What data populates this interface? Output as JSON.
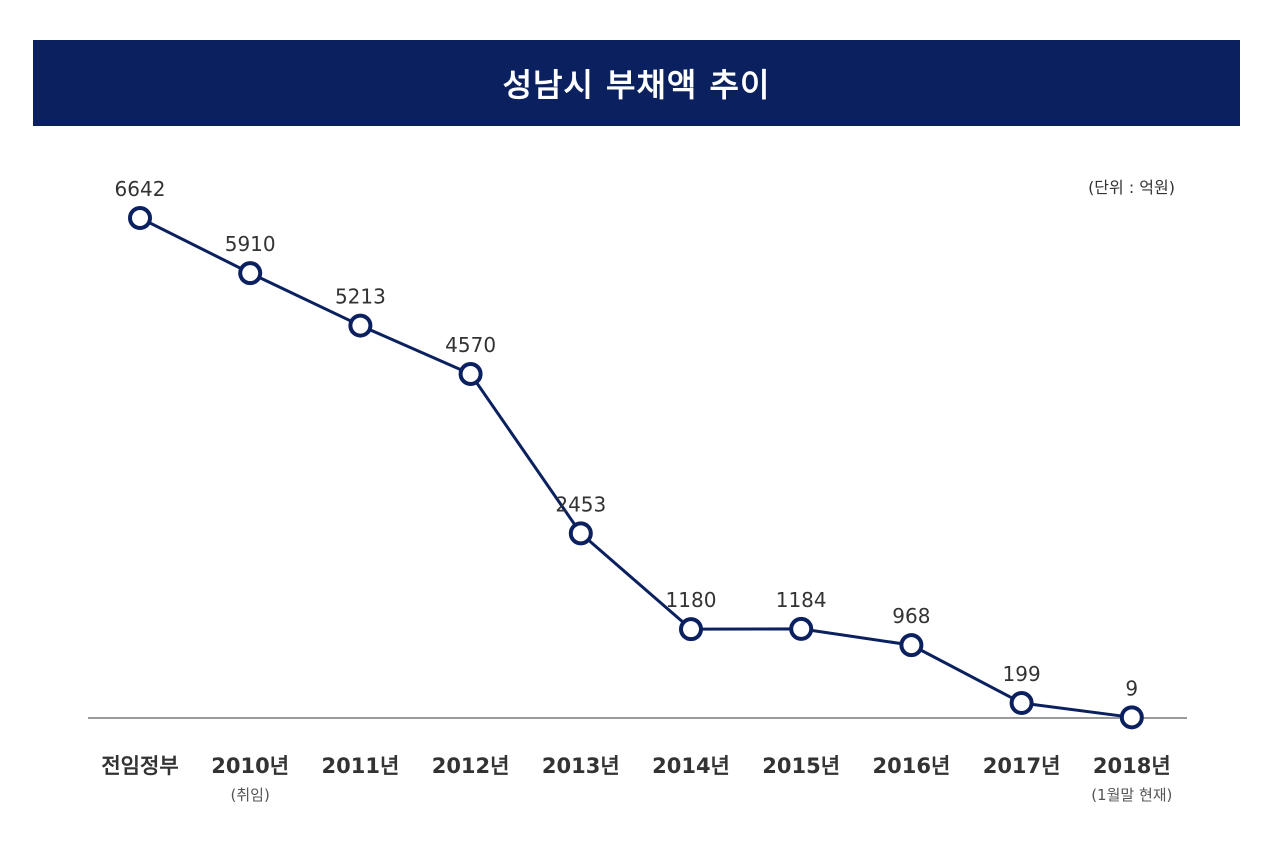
{
  "title": "성남시 부채액 추이",
  "unit": "(단위 : 억원)",
  "colors": {
    "header_bg": "#0b215f",
    "line": "#0b215f",
    "marker_fill": "#ffffff",
    "baseline": "#9a9a9a"
  },
  "chart_data": {
    "type": "line",
    "title": "성남시 부채액 추이",
    "ylabel": "억원",
    "xlabel": "",
    "categories": [
      "전임정부",
      "2010년",
      "2011년",
      "2012년",
      "2013년",
      "2014년",
      "2015년",
      "2016년",
      "2017년",
      "2018년"
    ],
    "sublabels": [
      "",
      "(취임)",
      "",
      "",
      "",
      "",
      "",
      "",
      "",
      "(1월말 현재)"
    ],
    "values": [
      6642,
      5910,
      5213,
      4570,
      2453,
      1180,
      1184,
      968,
      199,
      9
    ],
    "ylim": [
      0,
      6642
    ],
    "grid": false
  }
}
